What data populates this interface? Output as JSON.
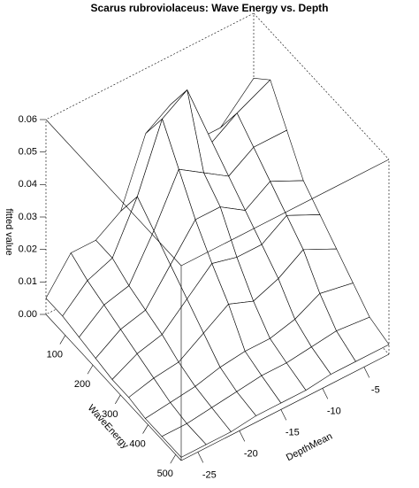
{
  "chart_data": {
    "type": "surface",
    "title": "Scarus rubroviolaceus: Wave Energy vs. Depth",
    "xlabel": "WaveEnergy",
    "ylabel": "DepthMean",
    "zlabel": "fitted value",
    "x": [
      30,
      90,
      150,
      210,
      270,
      330,
      390,
      450,
      520
    ],
    "y": [
      -27,
      -24,
      -21,
      -18,
      -15,
      -12,
      -9,
      -6,
      -2
    ],
    "z": [
      [
        0.005,
        0.015,
        0.015,
        0.02,
        0.04,
        0.045,
        0.03,
        0.03,
        0.04
      ],
      [
        0.005,
        0.012,
        0.015,
        0.03,
        0.05,
        0.055,
        0.035,
        0.04,
        0.045
      ],
      [
        0.004,
        0.01,
        0.012,
        0.025,
        0.04,
        0.035,
        0.03,
        0.035,
        0.035
      ],
      [
        0.003,
        0.008,
        0.01,
        0.02,
        0.03,
        0.03,
        0.025,
        0.03,
        0.025
      ],
      [
        0.002,
        0.006,
        0.008,
        0.015,
        0.022,
        0.02,
        0.02,
        0.025,
        0.02
      ],
      [
        0.002,
        0.004,
        0.005,
        0.01,
        0.015,
        0.012,
        0.015,
        0.02,
        0.015
      ],
      [
        0.001,
        0.002,
        0.003,
        0.005,
        0.006,
        0.006,
        0.008,
        0.012,
        0.01
      ],
      [
        0.001,
        0.001,
        0.002,
        0.003,
        0.004,
        0.004,
        0.005,
        0.006,
        0.005
      ],
      [
        0.001,
        0.001,
        0.001,
        0.002,
        0.002,
        0.002,
        0.003,
        0.003,
        0.003
      ]
    ],
    "xlim": [
      30,
      520
    ],
    "ylim": [
      -27,
      -2
    ],
    "zlim": [
      0,
      0.06
    ],
    "xticks": [
      100,
      200,
      300,
      400,
      500
    ],
    "yticks": [
      -5,
      -10,
      -15,
      -20,
      -25
    ],
    "zticks": [
      {
        "value": 0,
        "label": "0.00"
      },
      0.01,
      0.02,
      0.03,
      0.04,
      0.05,
      0.06
    ],
    "color": "#ffffff"
  }
}
